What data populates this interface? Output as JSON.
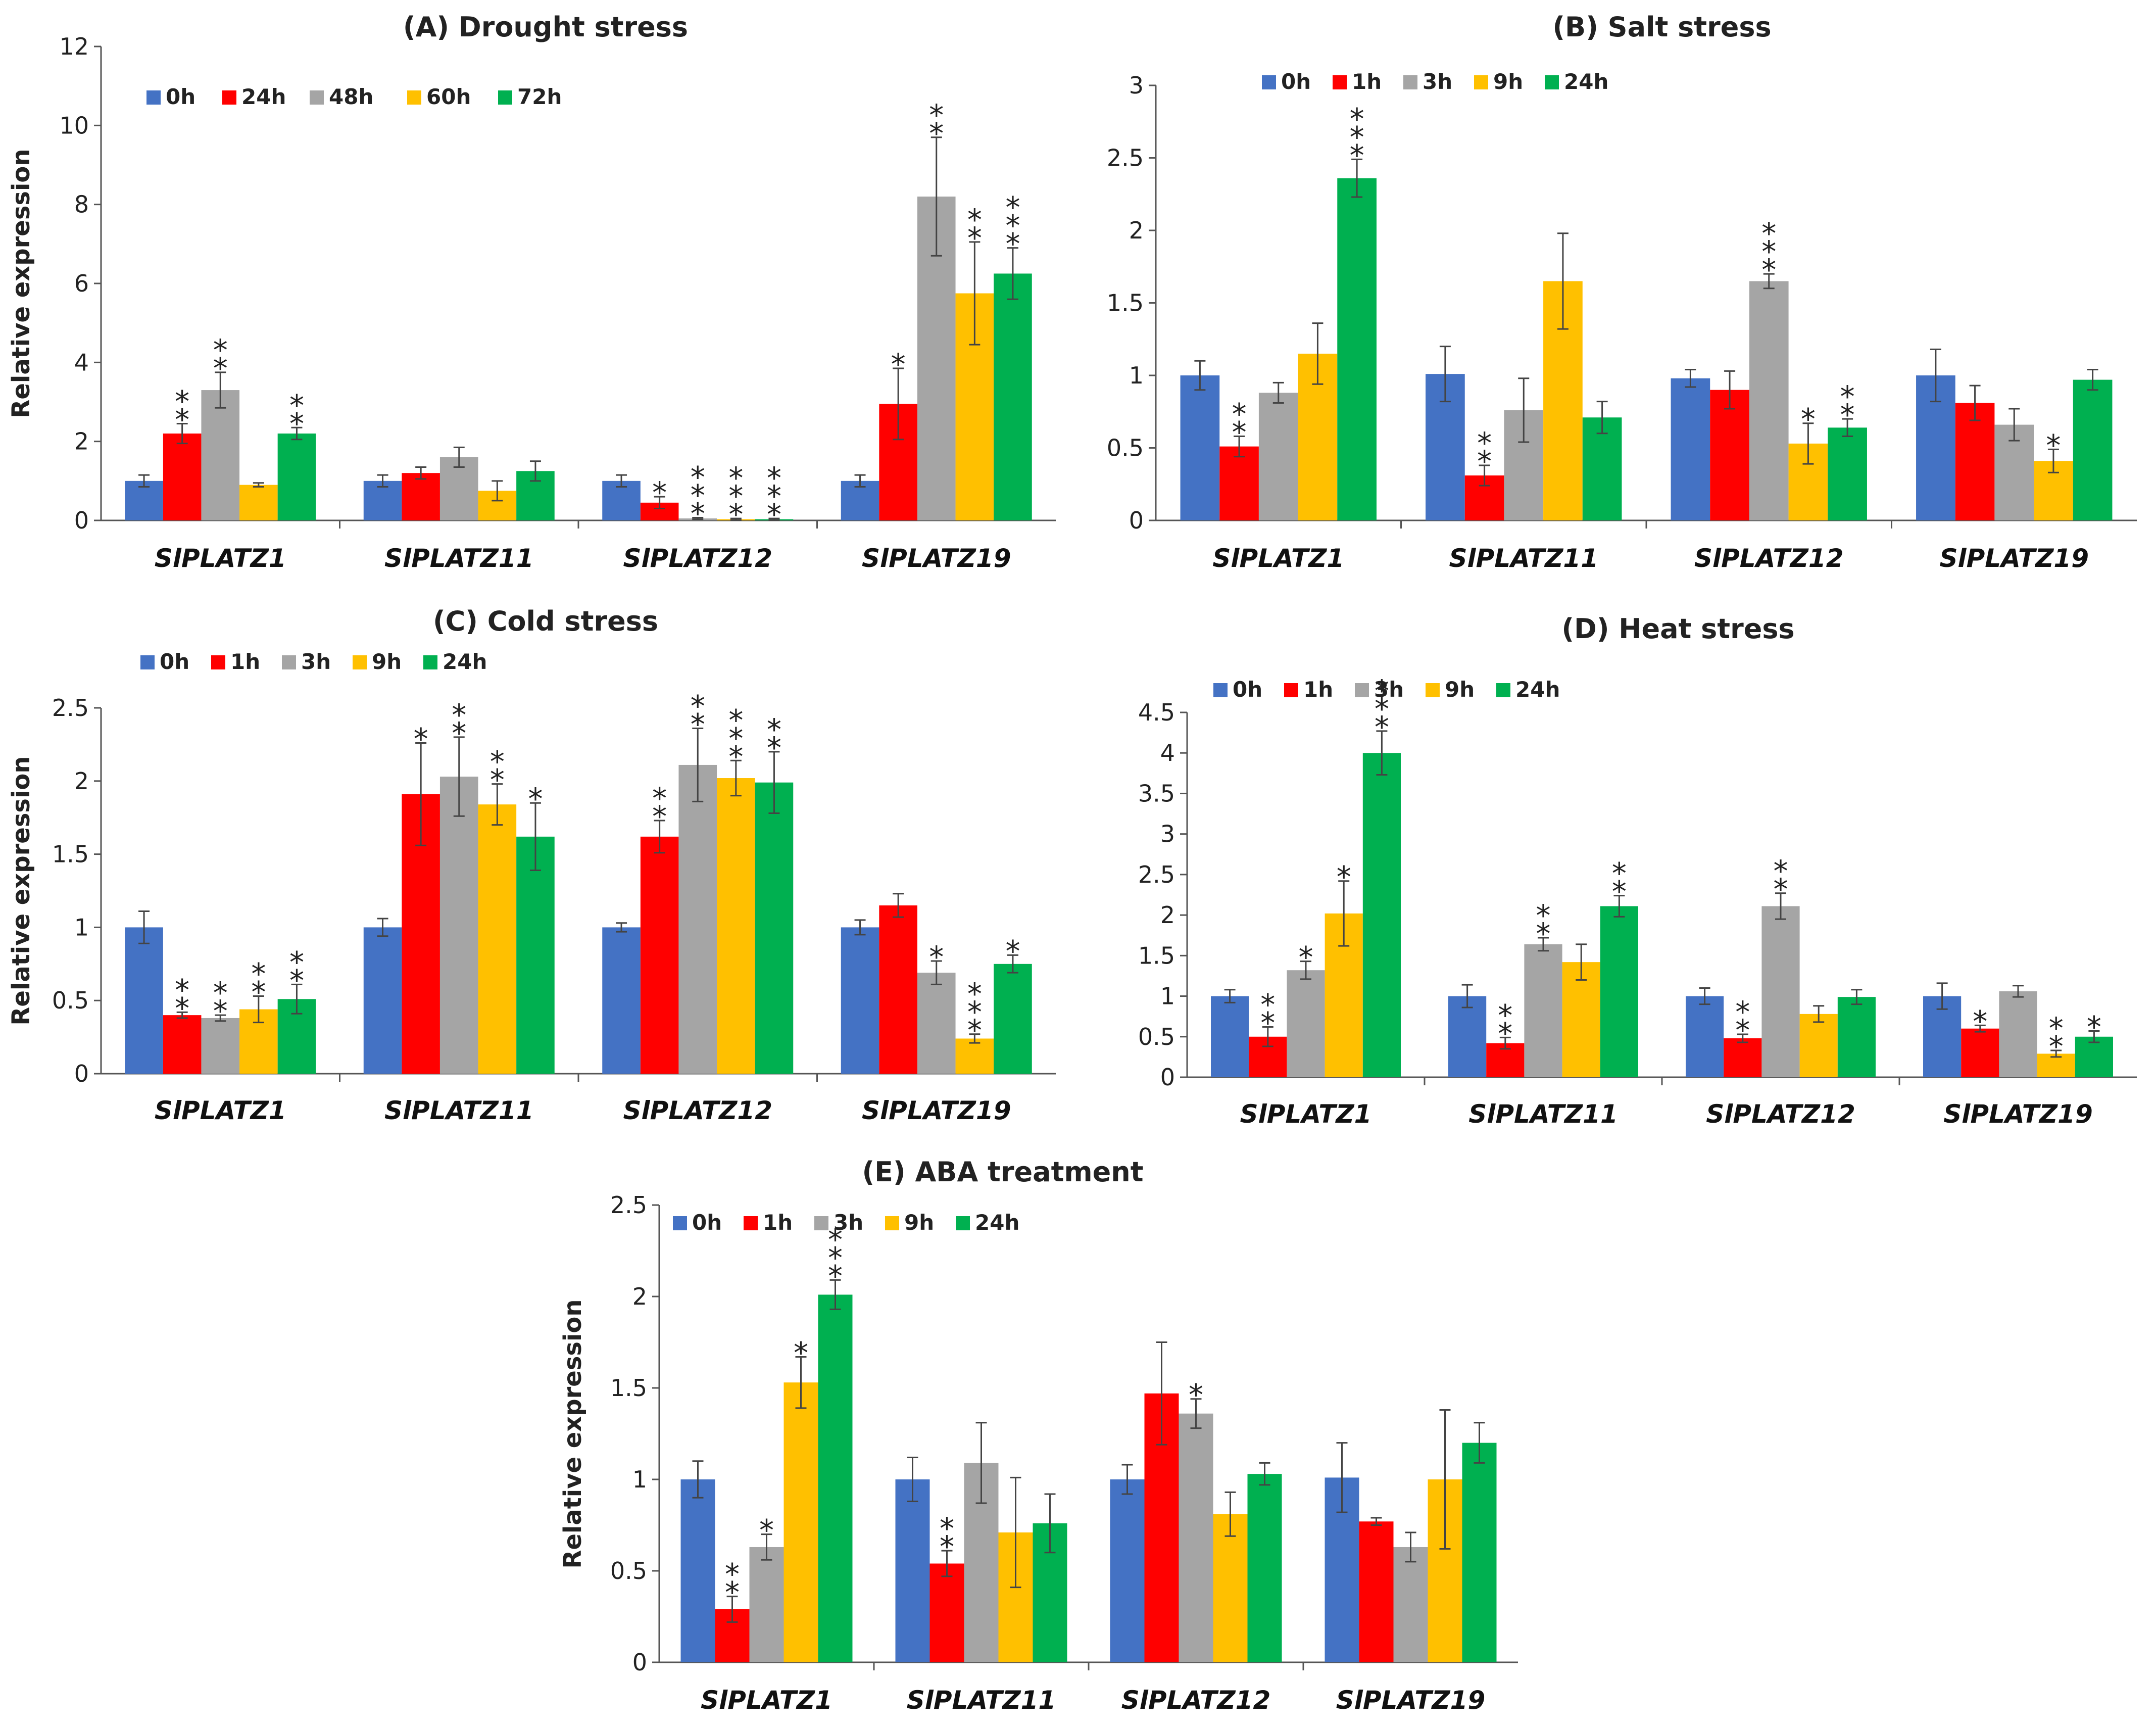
{
  "chart_data": [
    {
      "type": "bar",
      "title": "(A) Drought stress",
      "xlabel": "",
      "ylabel": "Relative expression",
      "ylim": [
        0,
        12
      ],
      "yticks": [
        "0",
        "2",
        "4",
        "6",
        "8",
        "10",
        "12"
      ],
      "grid": false,
      "legend_position": "top-left",
      "categories": [
        "SlPLATZ1",
        "SlPLATZ11",
        "SlPLATZ12",
        "SlPLATZ19"
      ],
      "series": [
        {
          "name": "0h",
          "color": "#4472C4",
          "values": [
            1.0,
            1.0,
            1.0,
            1.0
          ],
          "errors": [
            0.15,
            0.15,
            0.15,
            0.15
          ],
          "sig": [
            "",
            "",
            "",
            ""
          ]
        },
        {
          "name": "24h",
          "color": "#FF0000",
          "values": [
            2.2,
            1.2,
            0.45,
            2.95
          ],
          "errors": [
            0.25,
            0.15,
            0.15,
            0.9
          ],
          "sig": [
            "**",
            "",
            "*",
            "*"
          ]
        },
        {
          "name": "48h",
          "color": "#A5A5A5",
          "values": [
            3.3,
            1.6,
            0.05,
            8.2
          ],
          "errors": [
            0.45,
            0.25,
            0.02,
            1.5
          ],
          "sig": [
            "**",
            "",
            "***",
            "**"
          ]
        },
        {
          "name": "60h",
          "color": "#FFC000",
          "values": [
            0.9,
            0.75,
            0.03,
            5.75
          ],
          "errors": [
            0.05,
            0.25,
            0.02,
            1.3
          ],
          "sig": [
            "",
            "",
            "***",
            "**"
          ]
        },
        {
          "name": "72h",
          "color": "#00B050",
          "values": [
            2.2,
            1.25,
            0.03,
            6.25
          ],
          "errors": [
            0.15,
            0.25,
            0.02,
            0.65
          ],
          "sig": [
            "**",
            "",
            "***",
            "***"
          ]
        }
      ]
    },
    {
      "type": "bar",
      "title": "(B) Salt stress",
      "xlabel": "",
      "ylabel": "",
      "ylim": [
        0,
        3
      ],
      "yticks": [
        "0",
        "0.5",
        "1",
        "1.5",
        "2",
        "2.5",
        "3"
      ],
      "grid": false,
      "legend_position": "top-left",
      "categories": [
        "SlPLATZ1",
        "SlPLATZ11",
        "SlPLATZ12",
        "SlPLATZ19"
      ],
      "series": [
        {
          "name": "0h",
          "color": "#4472C4",
          "values": [
            1.0,
            1.01,
            0.98,
            1.0
          ],
          "errors": [
            0.1,
            0.19,
            0.06,
            0.18
          ],
          "sig": [
            "",
            "",
            "",
            ""
          ]
        },
        {
          "name": "1h",
          "color": "#FF0000",
          "values": [
            0.51,
            0.31,
            0.9,
            0.81
          ],
          "errors": [
            0.07,
            0.07,
            0.13,
            0.12
          ],
          "sig": [
            "**",
            "**",
            "",
            ""
          ]
        },
        {
          "name": "3h",
          "color": "#A5A5A5",
          "values": [
            0.88,
            0.76,
            1.65,
            0.66
          ],
          "errors": [
            0.07,
            0.22,
            0.05,
            0.11
          ],
          "sig": [
            "",
            "",
            "***",
            ""
          ]
        },
        {
          "name": "9h",
          "color": "#FFC000",
          "values": [
            1.15,
            1.65,
            0.53,
            0.41
          ],
          "errors": [
            0.21,
            0.33,
            0.14,
            0.08
          ],
          "sig": [
            "",
            "",
            "*",
            "*"
          ]
        },
        {
          "name": "24h",
          "color": "#00B050",
          "values": [
            2.36,
            0.71,
            0.64,
            0.97
          ],
          "errors": [
            0.13,
            0.11,
            0.06,
            0.07
          ],
          "sig": [
            "***",
            "",
            "**",
            ""
          ]
        }
      ]
    },
    {
      "type": "bar",
      "title": "(C) Cold stress",
      "xlabel": "",
      "ylabel": "Relative expression",
      "ylim": [
        0,
        2.5
      ],
      "yticks": [
        "0",
        "0.5",
        "1",
        "1.5",
        "2",
        "2.5"
      ],
      "grid": false,
      "legend_position": "top-left",
      "categories": [
        "SlPLATZ1",
        "SlPLATZ11",
        "SlPLATZ12",
        "SlPLATZ19"
      ],
      "series": [
        {
          "name": "0h",
          "color": "#4472C4",
          "values": [
            1.0,
            1.0,
            1.0,
            1.0
          ],
          "errors": [
            0.11,
            0.06,
            0.03,
            0.05
          ],
          "sig": [
            "",
            "",
            "",
            ""
          ]
        },
        {
          "name": "1h",
          "color": "#FF0000",
          "values": [
            0.4,
            1.91,
            1.62,
            1.15
          ],
          "errors": [
            0.02,
            0.35,
            0.11,
            0.08
          ],
          "sig": [
            "**",
            "*",
            "**",
            ""
          ]
        },
        {
          "name": "3h",
          "color": "#A5A5A5",
          "values": [
            0.38,
            2.03,
            2.11,
            0.69
          ],
          "errors": [
            0.02,
            0.27,
            0.25,
            0.08
          ],
          "sig": [
            "**",
            "**",
            "**",
            "*"
          ]
        },
        {
          "name": "9h",
          "color": "#FFC000",
          "values": [
            0.44,
            1.84,
            2.02,
            0.24
          ],
          "errors": [
            0.09,
            0.14,
            0.12,
            0.03
          ],
          "sig": [
            "**",
            "**",
            "***",
            "***"
          ]
        },
        {
          "name": "24h",
          "color": "#00B050",
          "values": [
            0.51,
            1.62,
            1.99,
            0.75
          ],
          "errors": [
            0.1,
            0.23,
            0.21,
            0.06
          ],
          "sig": [
            "**",
            "*",
            "**",
            "*"
          ]
        }
      ]
    },
    {
      "type": "bar",
      "title": "(D) Heat stress",
      "xlabel": "",
      "ylabel": "",
      "ylim": [
        0,
        4.5
      ],
      "yticks": [
        "0",
        "0.5",
        "1",
        "1.5",
        "2",
        "2.5",
        "3",
        "3.5",
        "4",
        "4.5"
      ],
      "grid": false,
      "legend_position": "top-left",
      "categories": [
        "SlPLATZ1",
        "SlPLATZ11",
        "SlPLATZ12",
        "SlPLATZ19"
      ],
      "series": [
        {
          "name": "0h",
          "color": "#4472C4",
          "values": [
            1.0,
            1.0,
            1.0,
            1.0
          ],
          "errors": [
            0.08,
            0.14,
            0.1,
            0.16
          ],
          "sig": [
            "",
            "",
            "",
            ""
          ]
        },
        {
          "name": "1h",
          "color": "#FF0000",
          "values": [
            0.5,
            0.42,
            0.48,
            0.6
          ],
          "errors": [
            0.12,
            0.07,
            0.05,
            0.04
          ],
          "sig": [
            "**",
            "**",
            "**",
            "*"
          ]
        },
        {
          "name": "3h",
          "color": "#A5A5A5",
          "values": [
            1.32,
            1.64,
            2.11,
            1.06
          ],
          "errors": [
            0.11,
            0.08,
            0.16,
            0.07
          ],
          "sig": [
            "*",
            "**",
            "**",
            ""
          ]
        },
        {
          "name": "9h",
          "color": "#FFC000",
          "values": [
            2.02,
            1.42,
            0.78,
            0.29
          ],
          "errors": [
            0.4,
            0.22,
            0.1,
            0.04
          ],
          "sig": [
            "*",
            "",
            "",
            "**"
          ]
        },
        {
          "name": "24h",
          "color": "#00B050",
          "values": [
            4.0,
            2.11,
            0.99,
            0.5
          ],
          "errors": [
            0.27,
            0.13,
            0.09,
            0.07
          ],
          "sig": [
            "***",
            "**",
            "",
            "*"
          ]
        }
      ]
    },
    {
      "type": "bar",
      "title": "(E) ABA treatment",
      "xlabel": "",
      "ylabel": "Relative expression",
      "ylim": [
        0,
        2.5
      ],
      "yticks": [
        "0",
        "0.5",
        "1",
        "1.5",
        "2",
        "2.5"
      ],
      "grid": false,
      "legend_position": "top-left",
      "categories": [
        "SlPLATZ1",
        "SlPLATZ11",
        "SlPLATZ12",
        "SlPLATZ19"
      ],
      "series": [
        {
          "name": "0h",
          "color": "#4472C4",
          "values": [
            1.0,
            1.0,
            1.0,
            1.01
          ],
          "errors": [
            0.1,
            0.12,
            0.08,
            0.19
          ],
          "sig": [
            "",
            "",
            "",
            ""
          ]
        },
        {
          "name": "1h",
          "color": "#FF0000",
          "values": [
            0.29,
            0.54,
            1.47,
            0.77
          ],
          "errors": [
            0.07,
            0.07,
            0.28,
            0.02
          ],
          "sig": [
            "**",
            "**",
            "",
            ""
          ]
        },
        {
          "name": "3h",
          "color": "#A5A5A5",
          "values": [
            0.63,
            1.09,
            1.36,
            0.63
          ],
          "errors": [
            0.07,
            0.22,
            0.08,
            0.08
          ],
          "sig": [
            "*",
            "",
            "*",
            ""
          ]
        },
        {
          "name": "9h",
          "color": "#FFC000",
          "values": [
            1.53,
            0.71,
            0.81,
            1.0
          ],
          "errors": [
            0.14,
            0.3,
            0.12,
            0.38
          ],
          "sig": [
            "*",
            "",
            "",
            ""
          ]
        },
        {
          "name": "24h",
          "color": "#00B050",
          "values": [
            2.01,
            0.76,
            1.03,
            1.2
          ],
          "errors": [
            0.08,
            0.16,
            0.06,
            0.11
          ],
          "sig": [
            "***",
            "",
            "",
            ""
          ]
        }
      ]
    }
  ]
}
